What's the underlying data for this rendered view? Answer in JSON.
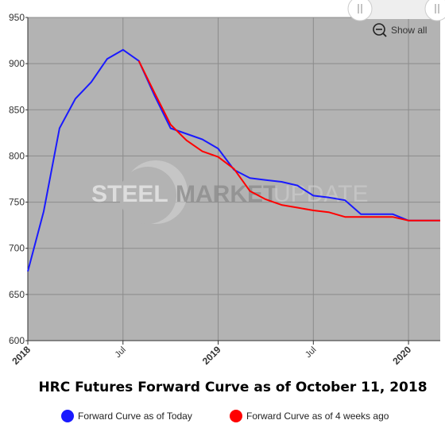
{
  "chart_data": {
    "type": "line",
    "title": "HRC Futures Forward Curve as of October 11, 2018",
    "xlabel": "",
    "ylabel": "",
    "y_ticks": [
      600,
      650,
      700,
      750,
      800,
      850,
      900,
      950
    ],
    "ylim": [
      600,
      950
    ],
    "x_range": [
      "2018-01",
      "2020-03"
    ],
    "x_ticks": [
      {
        "label": "2018",
        "x": "2018-01",
        "major": true
      },
      {
        "label": "Jul",
        "x": "2018-07",
        "major": false
      },
      {
        "label": "2019",
        "x": "2019-01",
        "major": true
      },
      {
        "label": "Jul",
        "x": "2019-07",
        "major": false
      },
      {
        "label": "2020",
        "x": "2020-01",
        "major": true
      }
    ],
    "grid": true,
    "legend_position": "bottom",
    "series": [
      {
        "name": "Forward Curve as of Today",
        "color": "#1a1aff",
        "points": [
          [
            "2018-01",
            675
          ],
          [
            "2018-02",
            740
          ],
          [
            "2018-03",
            830
          ],
          [
            "2018-04",
            862
          ],
          [
            "2018-05",
            880
          ],
          [
            "2018-06",
            905
          ],
          [
            "2018-07",
            915
          ],
          [
            "2018-08",
            903
          ],
          [
            "2018-09",
            865
          ],
          [
            "2018-10",
            830
          ],
          [
            "2018-11",
            824
          ],
          [
            "2018-12",
            818
          ],
          [
            "2019-01",
            808
          ],
          [
            "2019-02",
            785
          ],
          [
            "2019-03",
            776
          ],
          [
            "2019-04",
            774
          ],
          [
            "2019-05",
            772
          ],
          [
            "2019-06",
            768
          ],
          [
            "2019-07",
            757
          ],
          [
            "2019-08",
            755
          ],
          [
            "2019-09",
            752
          ],
          [
            "2019-10",
            737
          ],
          [
            "2019-11",
            737
          ],
          [
            "2019-12",
            737
          ],
          [
            "2020-01",
            730
          ],
          [
            "2020-02",
            730
          ],
          [
            "2020-03",
            730
          ]
        ]
      },
      {
        "name": "Forward Curve as of 4 weeks ago",
        "color": "#ff0000",
        "points": [
          [
            "2018-08",
            903
          ],
          [
            "2018-09",
            868
          ],
          [
            "2018-10",
            834
          ],
          [
            "2018-11",
            817
          ],
          [
            "2018-12",
            805
          ],
          [
            "2019-01",
            799
          ],
          [
            "2019-02",
            786
          ],
          [
            "2019-03",
            762
          ],
          [
            "2019-04",
            753
          ],
          [
            "2019-05",
            747
          ],
          [
            "2019-06",
            744
          ],
          [
            "2019-07",
            741
          ],
          [
            "2019-08",
            739
          ],
          [
            "2019-09",
            734
          ],
          [
            "2019-10",
            734
          ],
          [
            "2019-11",
            734
          ],
          [
            "2019-12",
            734
          ],
          [
            "2020-01",
            730
          ],
          [
            "2020-02",
            730
          ],
          [
            "2020-03",
            730
          ]
        ]
      }
    ]
  },
  "controls": {
    "show_all_label": "Show all",
    "zoom_icon": "zoom-out-icon",
    "scrollbar_handle_icon": "grip-lines-icon"
  },
  "watermark": {
    "word_1": "STEEL",
    "word_2": "MARKET",
    "word_3": "UPDATE"
  },
  "colors": {
    "plot_background": "#b3b3b3",
    "gridline": "#8c8c8c"
  }
}
